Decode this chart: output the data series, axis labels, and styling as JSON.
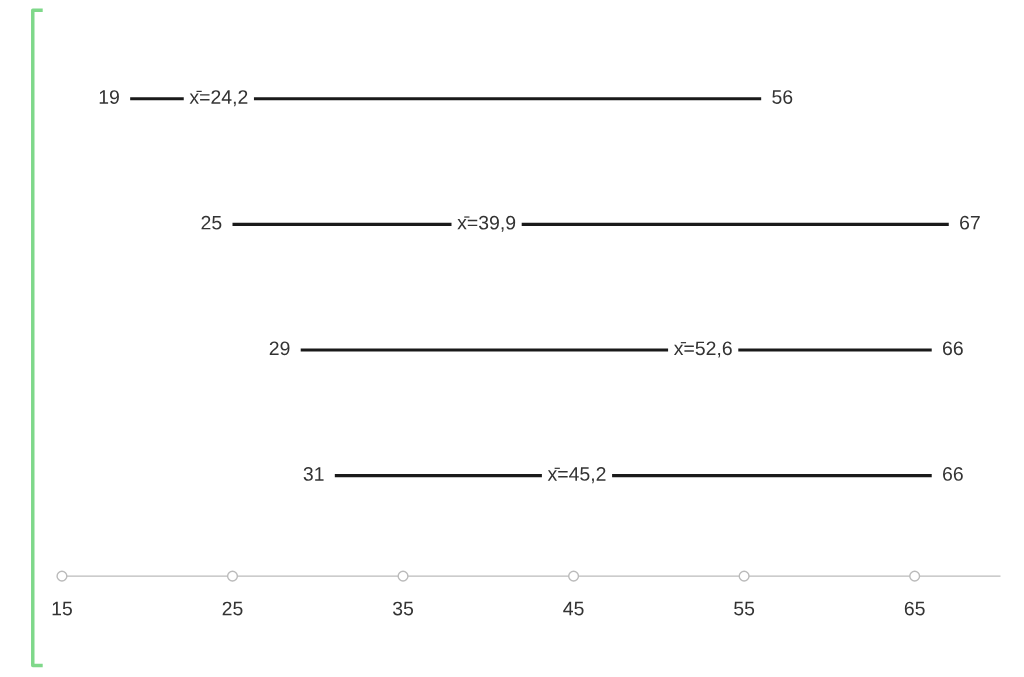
{
  "chart_data": {
    "type": "bar",
    "orientation": "horizontal",
    "categories": [
      null,
      null,
      null,
      null
    ],
    "base": [
      19,
      25,
      29,
      31
    ],
    "values": [
      37,
      42,
      37,
      35
    ],
    "color": "#1a1a1a",
    "xlim": [
      15,
      70
    ],
    "xticks": [
      15,
      25,
      35,
      45,
      55,
      65
    ],
    "grid": false,
    "annotations": [
      {
        "text": "19",
        "x": 19
      },
      {
        "text": "x̄=24,2",
        "x": 24.2
      },
      {
        "text": "56",
        "x": 56
      },
      {
        "text": "25",
        "x": 25
      },
      {
        "text": "x̄=39,9",
        "x": 39.9
      },
      {
        "text": "67",
        "x": 67
      },
      {
        "text": "29",
        "x": 29
      },
      {
        "text": "x̄=52,6",
        "x": 52.6
      },
      {
        "text": "66",
        "x": 66
      },
      {
        "text": "31",
        "x": 31
      },
      {
        "text": "x̄=45,2",
        "x": 45.2
      },
      {
        "text": "66",
        "x": 66
      }
    ]
  }
}
